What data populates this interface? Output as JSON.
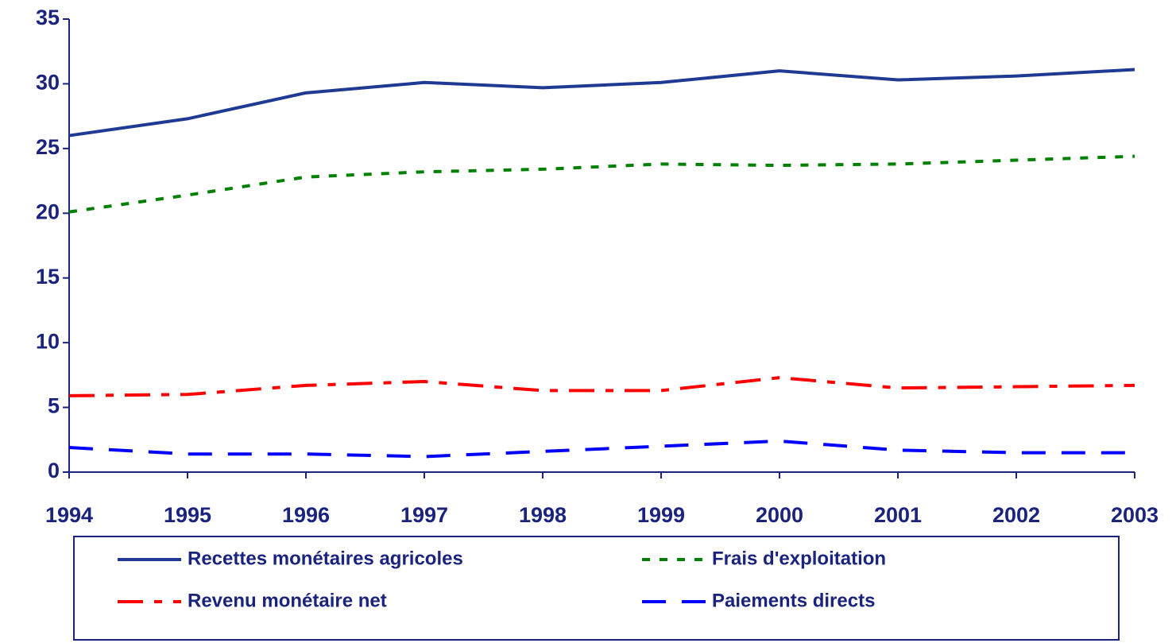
{
  "chart_data": {
    "type": "line",
    "categories": [
      "1994",
      "1995",
      "1996",
      "1997",
      "1998",
      "1999",
      "2000",
      "2001",
      "2002",
      "2003"
    ],
    "series": [
      {
        "name": "Recettes monétaires agricoles",
        "color": "#1f3a93",
        "style": "solid",
        "values": [
          26.0,
          27.3,
          29.3,
          30.1,
          29.7,
          30.1,
          31.0,
          30.3,
          30.6,
          31.1
        ]
      },
      {
        "name": "Frais d'exploitation",
        "color": "#008000",
        "style": "dotted",
        "values": [
          20.1,
          21.4,
          22.8,
          23.2,
          23.4,
          23.8,
          23.7,
          23.8,
          24.1,
          24.4
        ]
      },
      {
        "name": "Revenu monétaire net",
        "color": "#ff0000",
        "style": "dashdot",
        "values": [
          5.9,
          6.0,
          6.7,
          7.0,
          6.3,
          6.3,
          7.3,
          6.5,
          6.6,
          6.7
        ]
      },
      {
        "name": "Paiements directs",
        "color": "#0000ff",
        "style": "dashed",
        "values": [
          1.9,
          1.4,
          1.4,
          1.2,
          1.6,
          2.0,
          2.4,
          1.7,
          1.5,
          1.5
        ]
      }
    ],
    "ylim": [
      0,
      35
    ],
    "yticks": [
      0,
      5,
      10,
      15,
      20,
      25,
      30,
      35
    ],
    "grid": false,
    "legend": "bottom"
  }
}
